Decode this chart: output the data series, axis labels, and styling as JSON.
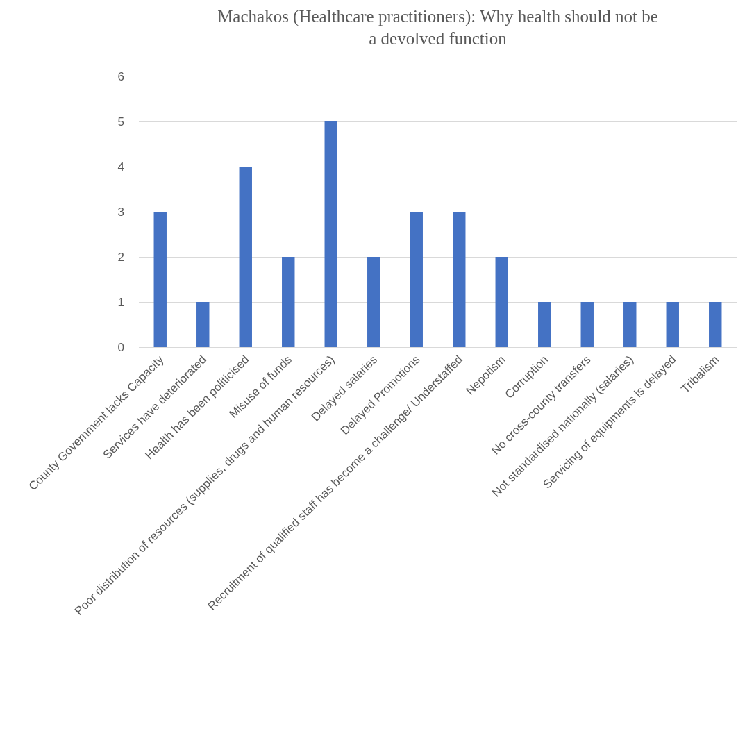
{
  "chart_data": {
    "type": "bar",
    "title": "Machakos (Healthcare practitioners): Why health should not be a devolved function",
    "categories": [
      "County Government lacks Capacity",
      "Services have deteriorated",
      "Health has been politicised",
      "Misuse of funds",
      "Poor distribution of resources (supplies, drugs and human resources)",
      "Delayed salaries",
      "Delayed Promotions",
      "Recruitment of qualified staff has become a challenge/ Understaffed",
      "Nepotism",
      "Corruption",
      "No cross-county transfers",
      "Not standardised nationally (salaries)",
      "Servicing of equipments is delayed",
      "Tribalism"
    ],
    "values": [
      3,
      1,
      4,
      2,
      5,
      2,
      3,
      3,
      2,
      1,
      1,
      1,
      1,
      1
    ],
    "color": "#4472c4",
    "ylim": [
      0,
      6
    ],
    "yticks": [
      0,
      1,
      2,
      3,
      4,
      5,
      6
    ],
    "grid": "y"
  }
}
